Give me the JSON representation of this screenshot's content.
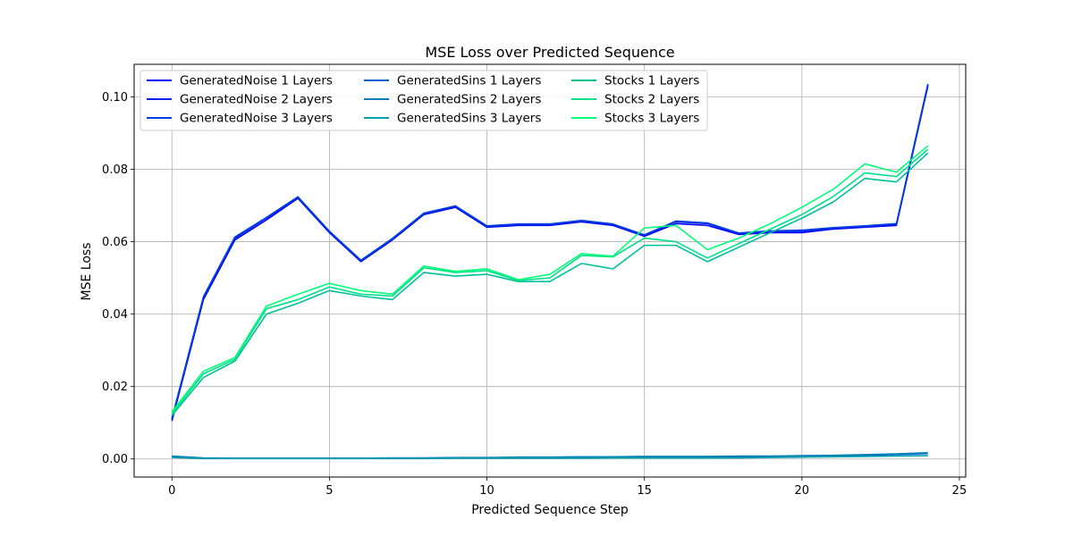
{
  "chart_data": {
    "type": "line",
    "title": "MSE Loss over Predicted Sequence",
    "xlabel": "Predicted Sequence Step",
    "ylabel": "MSE Loss",
    "xlim": [
      -1.2,
      25.2
    ],
    "ylim": [
      -0.005,
      0.109
    ],
    "xticks": [
      0,
      5,
      10,
      15,
      20,
      25
    ],
    "yticks": [
      0.0,
      0.02,
      0.04,
      0.06,
      0.08,
      0.1
    ],
    "xtick_labels": [
      "0",
      "5",
      "10",
      "15",
      "20",
      "25"
    ],
    "ytick_labels": [
      "0.00",
      "0.02",
      "0.04",
      "0.06",
      "0.08",
      "0.10"
    ],
    "grid": true,
    "legend_position": "top-left",
    "legend_columns": 3,
    "x": [
      0,
      1,
      2,
      3,
      4,
      5,
      6,
      7,
      8,
      9,
      10,
      11,
      12,
      13,
      14,
      15,
      16,
      17,
      18,
      19,
      20,
      21,
      22,
      23,
      24
    ],
    "series": [
      {
        "name": "GeneratedNoise 1 Layers",
        "color": "#0000ff",
        "values": [
          0.0105,
          0.044,
          0.0605,
          0.066,
          0.072,
          0.0625,
          0.0545,
          0.0605,
          0.0675,
          0.0695,
          0.064,
          0.0645,
          0.0645,
          0.0655,
          0.0645,
          0.0615,
          0.065,
          0.0645,
          0.062,
          0.0625,
          0.0625,
          0.0635,
          0.064,
          0.0645,
          0.103
        ]
      },
      {
        "name": "GeneratedNoise 2 Layers",
        "color": "#0020ee",
        "values": [
          0.011,
          0.0445,
          0.061,
          0.0665,
          0.0722,
          0.0627,
          0.0547,
          0.0607,
          0.0677,
          0.0697,
          0.0642,
          0.0647,
          0.0647,
          0.0657,
          0.0647,
          0.0617,
          0.0655,
          0.065,
          0.0622,
          0.0628,
          0.0628,
          0.0637,
          0.0642,
          0.0648,
          0.1033
        ]
      },
      {
        "name": "GeneratedNoise 3 Layers",
        "color": "#0040dd",
        "values": [
          0.0112,
          0.0448,
          0.0613,
          0.0667,
          0.0724,
          0.0629,
          0.0549,
          0.0609,
          0.0679,
          0.0699,
          0.0644,
          0.0649,
          0.0649,
          0.0659,
          0.0649,
          0.0619,
          0.0657,
          0.0652,
          0.0624,
          0.063,
          0.0632,
          0.0639,
          0.0644,
          0.065,
          0.1036
        ]
      },
      {
        "name": "GeneratedSins 1 Layers",
        "color": "#0060cc",
        "values": [
          0.0006,
          0.0002,
          0.0002,
          0.0002,
          0.0002,
          0.0002,
          0.0002,
          0.0002,
          0.0002,
          0.0003,
          0.0003,
          0.0003,
          0.0004,
          0.0004,
          0.0004,
          0.0005,
          0.0005,
          0.0005,
          0.0006,
          0.0006,
          0.0007,
          0.0008,
          0.001,
          0.0012,
          0.0015
        ]
      },
      {
        "name": "GeneratedSins 2 Layers",
        "color": "#0080bb",
        "values": [
          0.0008,
          0.0003,
          0.0002,
          0.0002,
          0.0002,
          0.0002,
          0.0002,
          0.0003,
          0.0003,
          0.0004,
          0.0004,
          0.0005,
          0.0005,
          0.0006,
          0.0006,
          0.0007,
          0.0007,
          0.0007,
          0.0008,
          0.0008,
          0.0009,
          0.001,
          0.0012,
          0.0014,
          0.0017
        ]
      },
      {
        "name": "GeneratedSins 3 Layers",
        "color": "#00a0aa",
        "values": [
          0.0004,
          0.0001,
          0.0001,
          0.0001,
          0.0001,
          0.0001,
          0.0001,
          0.0001,
          0.0001,
          0.0002,
          0.0002,
          0.0002,
          0.0002,
          0.0002,
          0.0003,
          0.0003,
          0.0003,
          0.0003,
          0.0003,
          0.0004,
          0.0005,
          0.0006,
          0.0007,
          0.0008,
          0.0009
        ]
      },
      {
        "name": "Stocks 1 Layers",
        "color": "#00c099",
        "values": [
          0.012,
          0.0225,
          0.027,
          0.04,
          0.043,
          0.0465,
          0.045,
          0.044,
          0.0515,
          0.0505,
          0.051,
          0.049,
          0.049,
          0.054,
          0.0525,
          0.059,
          0.059,
          0.0545,
          0.0585,
          0.0625,
          0.0665,
          0.071,
          0.0775,
          0.0765,
          0.0845
        ]
      },
      {
        "name": "Stocks 2 Layers",
        "color": "#00e088",
        "values": [
          0.0125,
          0.0235,
          0.0275,
          0.0415,
          0.044,
          0.0475,
          0.0455,
          0.045,
          0.0528,
          0.0515,
          0.052,
          0.0493,
          0.05,
          0.0562,
          0.0558,
          0.061,
          0.06,
          0.0555,
          0.0595,
          0.0635,
          0.0675,
          0.0725,
          0.079,
          0.078,
          0.0855
        ]
      },
      {
        "name": "Stocks 3 Layers",
        "color": "#00ff77",
        "values": [
          0.013,
          0.0242,
          0.028,
          0.0422,
          0.0455,
          0.0485,
          0.0465,
          0.0455,
          0.0533,
          0.0518,
          0.0525,
          0.0495,
          0.051,
          0.0567,
          0.056,
          0.0638,
          0.0645,
          0.0578,
          0.061,
          0.065,
          0.0695,
          0.0745,
          0.0815,
          0.0792,
          0.0865
        ]
      }
    ]
  }
}
